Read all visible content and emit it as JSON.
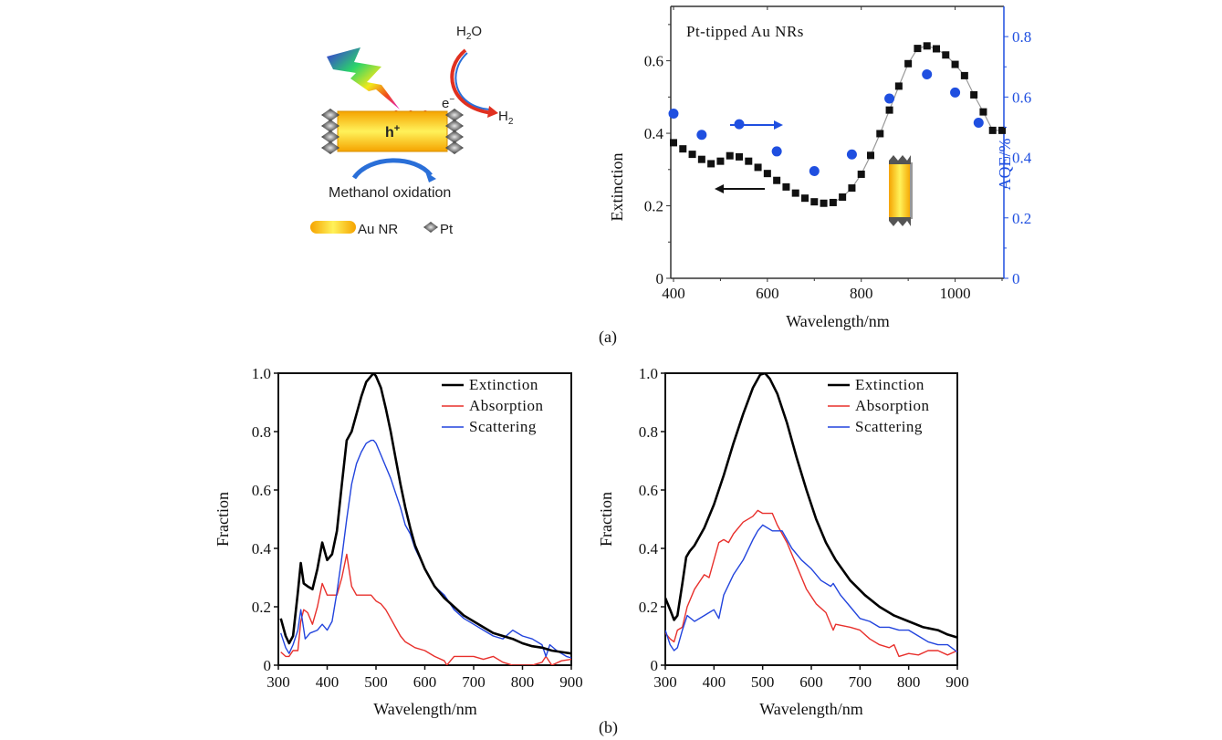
{
  "figure": {
    "panel_a_label": "(a)",
    "panel_b_label": "(b)",
    "schematic": {
      "h2o_label": "H",
      "h2o_sub": "2",
      "h2o_tail": "O",
      "h2_label": "H",
      "h2_sub": "2",
      "electron_label": "e",
      "electron_sup": "−",
      "hole_label": "h",
      "hole_sup": "+",
      "process_label": "Methanol oxidation",
      "legend_aunr": "Au NR",
      "legend_pt": "Pt"
    }
  },
  "chart_data": [
    {
      "type": "scatter",
      "title": "Pt-tipped Au NRs",
      "xlabel": "Wavelength/nm",
      "ylabel": "Extinction",
      "y2label": "AQE/%",
      "xlim": [
        400,
        1100
      ],
      "ylim": [
        0,
        0.75
      ],
      "y2lim": [
        0,
        0.9
      ],
      "xticks": [
        "400",
        "600",
        "800",
        "1000"
      ],
      "yticks": [
        "0",
        "0.2",
        "0.4",
        "0.6"
      ],
      "y2ticks": [
        "0",
        "0.2",
        "0.4",
        "0.6",
        "0.8"
      ],
      "colors": {
        "extinction": "#111111",
        "aqe": "#1f4fe0",
        "fit": "#999999"
      },
      "series": [
        {
          "name": "Extinction",
          "axis": "left",
          "marker": "square",
          "x": [
            400,
            420,
            440,
            460,
            480,
            500,
            520,
            540,
            560,
            580,
            600,
            620,
            640,
            660,
            680,
            700,
            720,
            740,
            760,
            780,
            800,
            820,
            840,
            860,
            880,
            900,
            920,
            940,
            960,
            980,
            1000,
            1020,
            1040,
            1060,
            1080,
            1100
          ],
          "y": [
            0.374,
            0.357,
            0.342,
            0.328,
            0.316,
            0.323,
            0.338,
            0.335,
            0.323,
            0.306,
            0.289,
            0.27,
            0.252,
            0.235,
            0.221,
            0.211,
            0.207,
            0.209,
            0.224,
            0.249,
            0.287,
            0.339,
            0.399,
            0.464,
            0.53,
            0.592,
            0.634,
            0.641,
            0.633,
            0.616,
            0.59,
            0.559,
            0.506,
            0.459,
            0.408,
            0.408
          ]
        },
        {
          "name": "AQE",
          "axis": "right",
          "marker": "circle",
          "x": [
            400,
            460,
            540,
            620,
            700,
            780,
            860,
            940,
            1000,
            1050
          ],
          "y": [
            0.545,
            0.475,
            0.51,
            0.42,
            0.355,
            0.41,
            0.595,
            0.675,
            0.615,
            0.515
          ]
        }
      ],
      "annotations": [
        "left arrow → Extinction axis",
        "right arrow → AQE axis",
        "Pt-tipped Au nanorod inset"
      ]
    },
    {
      "type": "line",
      "xlabel": "Wavelength/nm",
      "ylabel": "Fraction",
      "xlim": [
        300,
        900
      ],
      "ylim": [
        0,
        1.0
      ],
      "xticks": [
        "300",
        "400",
        "500",
        "600",
        "700",
        "800",
        "900"
      ],
      "yticks": [
        "0",
        "0.2",
        "0.4",
        "0.6",
        "0.8",
        "1.0"
      ],
      "legend": "top-right",
      "series": [
        {
          "name": "Extinction",
          "color": "#000000",
          "x": [
            305,
            315,
            322,
            330,
            340,
            346,
            352,
            360,
            370,
            380,
            390,
            400,
            410,
            420,
            430,
            440,
            450,
            460,
            470,
            480,
            490,
            495,
            500,
            510,
            520,
            530,
            540,
            550,
            560,
            570,
            580,
            600,
            620,
            640,
            660,
            680,
            700,
            720,
            740,
            760,
            780,
            800,
            820,
            840,
            860,
            880,
            900
          ],
          "y": [
            0.16,
            0.1,
            0.075,
            0.1,
            0.25,
            0.35,
            0.28,
            0.27,
            0.26,
            0.33,
            0.42,
            0.36,
            0.38,
            0.46,
            0.62,
            0.77,
            0.8,
            0.86,
            0.92,
            0.97,
            0.99,
            1.0,
            0.99,
            0.95,
            0.88,
            0.8,
            0.71,
            0.62,
            0.54,
            0.47,
            0.41,
            0.33,
            0.27,
            0.23,
            0.2,
            0.17,
            0.15,
            0.13,
            0.11,
            0.1,
            0.09,
            0.075,
            0.065,
            0.06,
            0.05,
            0.045,
            0.04
          ]
        },
        {
          "name": "Absorption",
          "color": "#e8302c",
          "x": [
            305,
            315,
            322,
            330,
            340,
            346,
            352,
            360,
            370,
            380,
            390,
            400,
            410,
            420,
            430,
            440,
            450,
            460,
            470,
            480,
            490,
            500,
            510,
            520,
            530,
            540,
            550,
            560,
            570,
            580,
            600,
            620,
            640,
            645,
            660,
            680,
            700,
            720,
            740,
            760,
            780,
            800,
            820,
            840,
            848,
            860,
            880,
            900
          ],
          "y": [
            0.045,
            0.03,
            0.03,
            0.05,
            0.05,
            0.15,
            0.19,
            0.18,
            0.14,
            0.2,
            0.28,
            0.24,
            0.24,
            0.24,
            0.3,
            0.38,
            0.27,
            0.24,
            0.24,
            0.24,
            0.24,
            0.22,
            0.21,
            0.19,
            0.16,
            0.13,
            0.1,
            0.08,
            0.07,
            0.06,
            0.05,
            0.03,
            0.015,
            0.0,
            0.03,
            0.03,
            0.03,
            0.02,
            0.03,
            0.01,
            0.0,
            0.0,
            0.0,
            0.01,
            0.03,
            0.0,
            0.015,
            0.02
          ]
        },
        {
          "name": "Scattering",
          "color": "#2244dd",
          "x": [
            305,
            315,
            322,
            330,
            340,
            346,
            355,
            365,
            380,
            390,
            400,
            410,
            420,
            430,
            440,
            450,
            460,
            470,
            480,
            490,
            495,
            500,
            510,
            520,
            530,
            540,
            550,
            560,
            570,
            580,
            600,
            620,
            640,
            660,
            680,
            700,
            720,
            740,
            760,
            780,
            800,
            820,
            840,
            848,
            856,
            870,
            890,
            900
          ],
          "y": [
            0.11,
            0.06,
            0.04,
            0.07,
            0.12,
            0.19,
            0.09,
            0.11,
            0.12,
            0.14,
            0.12,
            0.15,
            0.25,
            0.37,
            0.5,
            0.62,
            0.69,
            0.73,
            0.76,
            0.77,
            0.77,
            0.76,
            0.72,
            0.68,
            0.64,
            0.59,
            0.54,
            0.48,
            0.45,
            0.4,
            0.33,
            0.27,
            0.24,
            0.19,
            0.16,
            0.14,
            0.12,
            0.1,
            0.09,
            0.12,
            0.1,
            0.09,
            0.07,
            0.03,
            0.07,
            0.05,
            0.03,
            0.025
          ]
        }
      ]
    },
    {
      "type": "line",
      "xlabel": "Wavelength/nm",
      "ylabel": "Fraction",
      "xlim": [
        300,
        900
      ],
      "ylim": [
        0,
        1.0
      ],
      "xticks": [
        "300",
        "400",
        "500",
        "600",
        "700",
        "800",
        "900"
      ],
      "yticks": [
        "0",
        "0.2",
        "0.4",
        "0.6",
        "0.8",
        "1.0"
      ],
      "legend": "top-right",
      "series": [
        {
          "name": "Extinction",
          "color": "#000000",
          "x": [
            300,
            310,
            318,
            325,
            335,
            343,
            350,
            360,
            380,
            400,
            420,
            440,
            460,
            480,
            495,
            505,
            515,
            530,
            550,
            570,
            590,
            610,
            630,
            650,
            680,
            710,
            740,
            770,
            800,
            830,
            860,
            880,
            900
          ],
          "y": [
            0.23,
            0.19,
            0.155,
            0.17,
            0.28,
            0.37,
            0.39,
            0.41,
            0.47,
            0.55,
            0.65,
            0.76,
            0.86,
            0.95,
            0.995,
            1.0,
            0.98,
            0.93,
            0.83,
            0.71,
            0.6,
            0.5,
            0.42,
            0.36,
            0.29,
            0.24,
            0.2,
            0.17,
            0.15,
            0.13,
            0.12,
            0.105,
            0.095
          ]
        },
        {
          "name": "Absorption",
          "color": "#e8302c",
          "x": [
            300,
            310,
            318,
            325,
            335,
            345,
            360,
            380,
            390,
            400,
            410,
            420,
            430,
            440,
            460,
            480,
            490,
            500,
            520,
            530,
            550,
            570,
            590,
            610,
            630,
            645,
            650,
            680,
            700,
            720,
            740,
            760,
            770,
            780,
            800,
            820,
            840,
            860,
            880,
            900
          ],
          "y": [
            0.11,
            0.09,
            0.08,
            0.12,
            0.13,
            0.2,
            0.26,
            0.31,
            0.3,
            0.36,
            0.42,
            0.43,
            0.42,
            0.45,
            0.49,
            0.51,
            0.53,
            0.52,
            0.52,
            0.48,
            0.42,
            0.34,
            0.26,
            0.21,
            0.18,
            0.12,
            0.14,
            0.13,
            0.12,
            0.09,
            0.07,
            0.06,
            0.07,
            0.03,
            0.04,
            0.035,
            0.05,
            0.05,
            0.035,
            0.05
          ]
        },
        {
          "name": "Scattering",
          "color": "#2244dd",
          "x": [
            300,
            310,
            318,
            325,
            335,
            345,
            360,
            380,
            390,
            400,
            410,
            420,
            440,
            460,
            480,
            490,
            500,
            520,
            540,
            560,
            580,
            600,
            620,
            640,
            645,
            660,
            680,
            700,
            720,
            740,
            760,
            780,
            800,
            820,
            840,
            860,
            880,
            900
          ],
          "y": [
            0.12,
            0.07,
            0.05,
            0.06,
            0.12,
            0.17,
            0.15,
            0.17,
            0.18,
            0.19,
            0.16,
            0.24,
            0.31,
            0.36,
            0.43,
            0.46,
            0.48,
            0.46,
            0.46,
            0.4,
            0.36,
            0.33,
            0.29,
            0.27,
            0.28,
            0.24,
            0.2,
            0.16,
            0.15,
            0.13,
            0.13,
            0.12,
            0.12,
            0.1,
            0.08,
            0.07,
            0.07,
            0.045
          ]
        }
      ]
    }
  ]
}
